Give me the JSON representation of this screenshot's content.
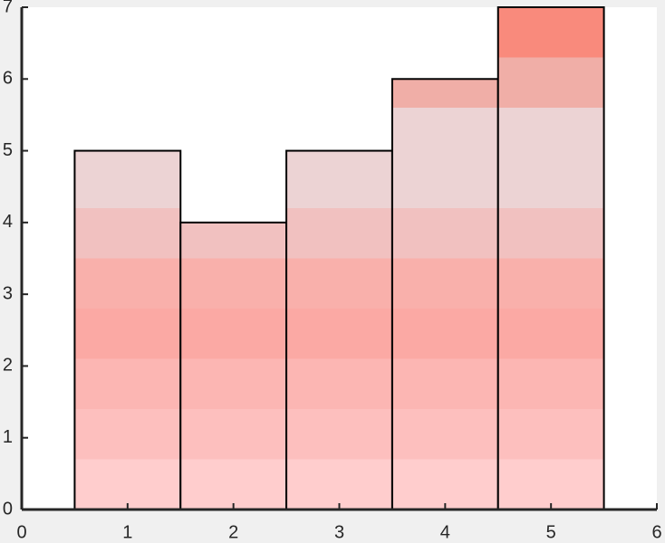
{
  "chart_data": {
    "type": "bar",
    "x": [
      1,
      2,
      3,
      4,
      5
    ],
    "values": [
      5,
      4,
      5,
      6,
      7
    ],
    "xlim": [
      0,
      6
    ],
    "xticks": [
      0,
      1,
      2,
      3,
      4,
      5,
      6
    ],
    "ylim": [
      0,
      7
    ],
    "yticks": [
      0,
      1,
      2,
      3,
      4,
      5,
      6,
      7
    ],
    "colormap": [
      "#ffcdcd",
      "#fdbfbe",
      "#fcb6b3",
      "#fba9a4",
      "#f9b0ab",
      "#f1c1c0",
      "#ecd3d4",
      "#ecd3d4",
      "#f0aea7",
      "#f98a7c"
    ],
    "edge_color": "#000000"
  }
}
